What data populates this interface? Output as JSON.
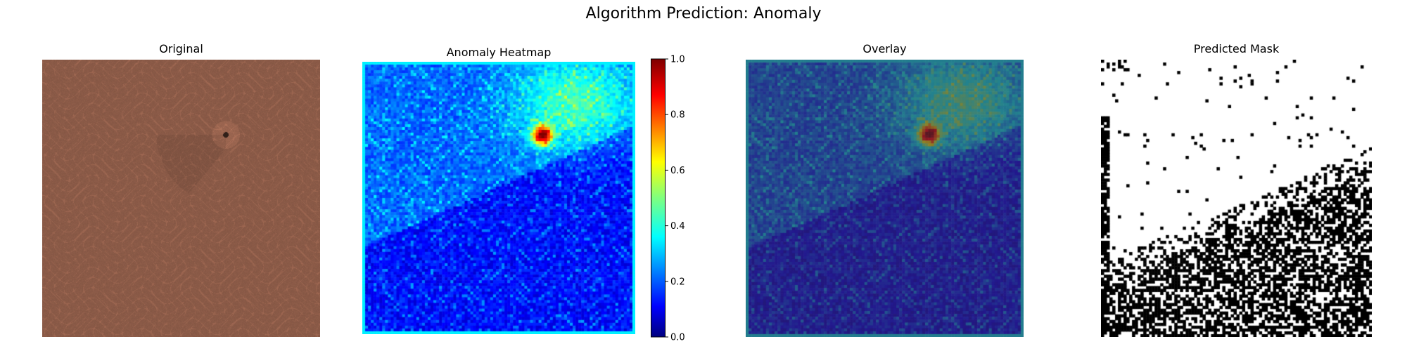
{
  "figure": {
    "title": "Algorithm Prediction: Anomaly"
  },
  "panels": {
    "original": {
      "title": "Original"
    },
    "heatmap": {
      "title": "Anomaly Heatmap"
    },
    "overlay": {
      "title": "Overlay"
    },
    "mask": {
      "title": "Predicted Mask"
    }
  },
  "colorbar": {
    "min": 0.0,
    "max": 1.0,
    "ticks": [
      "0.0",
      "0.2",
      "0.4",
      "0.6",
      "0.8",
      "1.0"
    ],
    "colormap": "jet"
  },
  "colors": {
    "leather": "#8a5a47",
    "overlay_base": "#3d3a72",
    "mask_fg": "#000000",
    "mask_bg": "#ffffff"
  }
}
